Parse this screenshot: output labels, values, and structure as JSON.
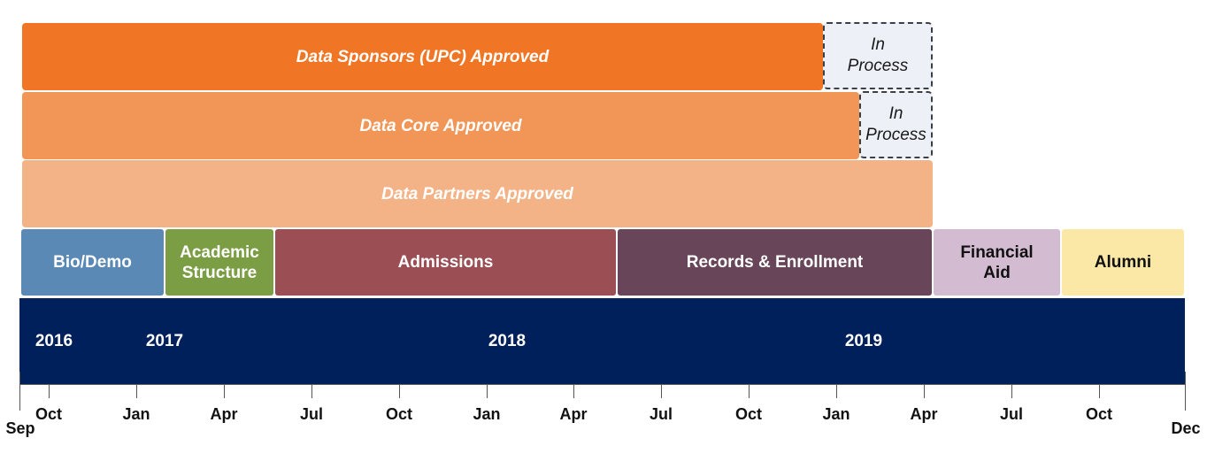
{
  "approvals": {
    "sponsors": {
      "label": "Data Sponsors (UPC) Approved",
      "color": "#f07524"
    },
    "core": {
      "label": "Data Core Approved",
      "color": "#f19657"
    },
    "partners": {
      "label": "Data Partners Approved",
      "color": "#f3b387"
    },
    "in_process_label": "In Process"
  },
  "domains": [
    {
      "label": "Bio/Demo",
      "color": "#5b89b5",
      "text_color": "#ffffff"
    },
    {
      "label": "Academic Structure",
      "color": "#7b9e45",
      "text_color": "#ffffff"
    },
    {
      "label": "Admissions",
      "color": "#9b4f55",
      "text_color": "#ffffff"
    },
    {
      "label": "Records & Enrollment",
      "color": "#684559",
      "text_color": "#ffffff"
    },
    {
      "label": "Financial Aid",
      "color": "#d3bcd1",
      "text_color": "#111111"
    },
    {
      "label": "Alumni",
      "color": "#fce8a6",
      "text_color": "#111111"
    }
  ],
  "timeline": {
    "band_color": "#00205b",
    "years": [
      "2016",
      "2017",
      "2018",
      "2019"
    ],
    "months": [
      "Oct",
      "Jan",
      "Apr",
      "Jul",
      "Oct",
      "Jan",
      "Apr",
      "Jul",
      "Oct",
      "Jan",
      "Apr",
      "Jul",
      "Oct"
    ],
    "start_label": "Sep",
    "end_label": "Dec"
  }
}
